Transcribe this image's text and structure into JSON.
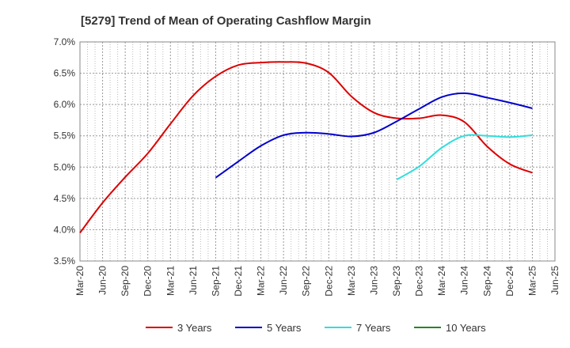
{
  "chart_data": {
    "type": "line",
    "title": "[5279]  Trend of Mean of Operating Cashflow Margin",
    "xlabel": "",
    "ylabel": "",
    "ylim": [
      3.5,
      7.0
    ],
    "y_ticks": [
      "3.5%",
      "4.0%",
      "4.5%",
      "5.0%",
      "5.5%",
      "6.0%",
      "6.5%",
      "7.0%"
    ],
    "x_ticks": [
      "Mar-20",
      "Jun-20",
      "Sep-20",
      "Dec-20",
      "Mar-21",
      "Jun-21",
      "Sep-21",
      "Dec-21",
      "Mar-22",
      "Jun-22",
      "Sep-22",
      "Dec-22",
      "Mar-23",
      "Jun-23",
      "Sep-23",
      "Dec-23",
      "Mar-24",
      "Jun-24",
      "Sep-24",
      "Dec-24",
      "Mar-25",
      "Jun-25"
    ],
    "grid": true,
    "legend_position": "bottom",
    "series": [
      {
        "name": "3 Years",
        "color": "#dd0000",
        "values": [
          3.95,
          4.43,
          4.84,
          5.22,
          5.69,
          6.14,
          6.45,
          6.63,
          6.67,
          6.68,
          6.66,
          6.51,
          6.13,
          5.87,
          5.78,
          5.78,
          5.83,
          5.72,
          5.33,
          5.05,
          4.91
        ]
      },
      {
        "name": "5 Years",
        "color": "#0000cc",
        "values": [
          null,
          null,
          null,
          null,
          null,
          null,
          4.83,
          5.09,
          5.34,
          5.51,
          5.55,
          5.53,
          5.49,
          5.55,
          5.73,
          5.93,
          6.12,
          6.18,
          6.11,
          6.03,
          5.94
        ]
      },
      {
        "name": "7 Years",
        "color": "#33dddd",
        "values": [
          null,
          null,
          null,
          null,
          null,
          null,
          null,
          null,
          null,
          null,
          null,
          null,
          null,
          null,
          4.8,
          5.01,
          5.31,
          5.5,
          5.5,
          5.48,
          5.51
        ]
      },
      {
        "name": "10 Years",
        "color": "#228822",
        "values": [
          null,
          null,
          null,
          null,
          null,
          null,
          null,
          null,
          null,
          null,
          null,
          null,
          null,
          null,
          null,
          null,
          null,
          null,
          null,
          null,
          null
        ]
      }
    ]
  }
}
